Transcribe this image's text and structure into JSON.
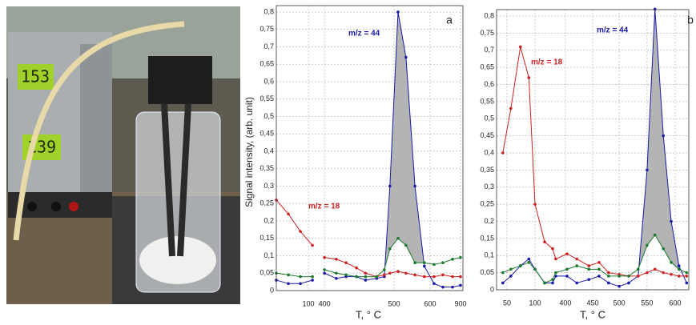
{
  "photo": {
    "voltage": "153",
    "current": "139"
  },
  "chart_data": [
    {
      "type": "line",
      "panel": "a",
      "ylabel": "Signal intensity, (arb. unit)",
      "xlabel": "T, ° C",
      "x": [
        20,
        50,
        80,
        175,
        295,
        400,
        417,
        431,
        446,
        459,
        475,
        486,
        494,
        511,
        533,
        558,
        584,
        639,
        726,
        821,
        900
      ],
      "xlim": [
        20,
        925
      ],
      "xticks": [
        100,
        400,
        500,
        600,
        900
      ],
      "ylim": [
        0,
        0.8
      ],
      "yticks": [
        {
          "value": 0,
          "label": "0"
        },
        {
          "value": 0.05,
          "label": "0,05"
        },
        {
          "value": 0.1,
          "label": "0,1"
        },
        {
          "value": 0.15,
          "label": "0,15"
        },
        {
          "value": 0.2,
          "label": "0,2"
        },
        {
          "value": 0.25,
          "label": "0,25"
        },
        {
          "value": 0.3,
          "label": "0,3"
        },
        {
          "value": 0.35,
          "label": "0,35"
        },
        {
          "value": 0.4,
          "label": "0,4"
        },
        {
          "value": 0.45,
          "label": "0,45"
        },
        {
          "value": 0.5,
          "label": "0,5"
        },
        {
          "value": 0.55,
          "label": "0,55"
        },
        {
          "value": 0.6,
          "label": "0,6"
        },
        {
          "value": 0.65,
          "label": "0,65"
        },
        {
          "value": 0.7,
          "label": "0,7"
        },
        {
          "value": 0.75,
          "label": "0,75"
        },
        {
          "value": 0.8,
          "label": "0,8"
        }
      ],
      "grid": true,
      "shade": "#b4b4b4",
      "series": [
        {
          "name": "m/z = 44",
          "color": "#1a1aa8",
          "values": [
            0.03,
            0.02,
            0.02,
            0.03,
            null,
            0.05,
            0.035,
            0.04,
            0.04,
            0.03,
            0.035,
            0.04,
            0.3,
            0.8,
            0.67,
            0.3,
            0.07,
            0.02,
            0.01,
            0.01,
            0.015
          ]
        },
        {
          "name": "m/z = 18",
          "color": "#cc2222",
          "values": [
            0.26,
            0.22,
            0.17,
            0.13,
            null,
            0.095,
            0.09,
            0.08,
            0.065,
            0.05,
            0.04,
            0.045,
            0.05,
            0.055,
            0.05,
            0.045,
            0.04,
            0.04,
            0.045,
            0.04,
            0.04
          ]
        },
        {
          "color": "#1b7a2e",
          "values": [
            0.05,
            0.045,
            0.04,
            0.04,
            null,
            0.06,
            0.05,
            0.045,
            0.04,
            0.04,
            0.04,
            0.06,
            0.12,
            0.15,
            0.13,
            0.08,
            0.08,
            0.075,
            0.08,
            0.09,
            0.095
          ]
        }
      ]
    },
    {
      "type": "line",
      "panel": "b",
      "xlabel": "T, ° C",
      "x": [
        42,
        57,
        74,
        89,
        100,
        195,
        274,
        305,
        403,
        421,
        443,
        462,
        480,
        500,
        517,
        534,
        550,
        564,
        579,
        593,
        607,
        621
      ],
      "xlim": [
        30,
        625
      ],
      "xticks": [
        50,
        100,
        400,
        450,
        500,
        550,
        600
      ],
      "ylim": [
        0,
        0.8
      ],
      "yticks": [
        {
          "value": 0,
          "label": "0"
        },
        {
          "value": 0.05,
          "label": "0,05"
        },
        {
          "value": 0.1,
          "label": "0,1"
        },
        {
          "value": 0.15,
          "label": "0,15"
        },
        {
          "value": 0.2,
          "label": "0,2"
        },
        {
          "value": 0.25,
          "label": "0,25"
        },
        {
          "value": 0.3,
          "label": "0,3"
        },
        {
          "value": 0.35,
          "label": "0,35"
        },
        {
          "value": 0.4,
          "label": "0,4"
        },
        {
          "value": 0.45,
          "label": "0,45"
        },
        {
          "value": 0.5,
          "label": "0,5"
        },
        {
          "value": 0.55,
          "label": "0,55"
        },
        {
          "value": 0.6,
          "label": "0,6"
        },
        {
          "value": 0.65,
          "label": "0,65"
        },
        {
          "value": 0.7,
          "label": "0,7"
        },
        {
          "value": 0.75,
          "label": "0,75"
        },
        {
          "value": 0.8,
          "label": "0,8"
        }
      ],
      "grid": true,
      "shade": "#b4b4b4",
      "series": [
        {
          "name": "m/z = 44",
          "color": "#1a1aa8",
          "values": [
            0.02,
            0.04,
            0.07,
            0.09,
            0.06,
            0.02,
            0.02,
            0.04,
            0.04,
            0.02,
            0.03,
            0.04,
            0.02,
            0.01,
            0.02,
            0.04,
            0.35,
            0.82,
            0.45,
            0.2,
            0.07,
            0.02
          ]
        },
        {
          "name": "m/z = 18",
          "color": "#cc2222",
          "values": [
            0.4,
            0.53,
            0.71,
            0.62,
            0.25,
            0.14,
            0.12,
            0.09,
            0.105,
            0.09,
            0.07,
            0.08,
            0.05,
            0.045,
            0.04,
            0.04,
            0.05,
            0.06,
            0.05,
            0.045,
            0.04,
            0.04
          ]
        },
        {
          "color": "#1b7a2e",
          "values": [
            0.05,
            0.06,
            0.07,
            0.08,
            0.06,
            0.02,
            0.03,
            0.05,
            0.06,
            0.07,
            0.06,
            0.06,
            0.04,
            0.04,
            0.04,
            0.06,
            0.13,
            0.16,
            0.12,
            0.08,
            0.06,
            0.05
          ]
        }
      ]
    }
  ]
}
